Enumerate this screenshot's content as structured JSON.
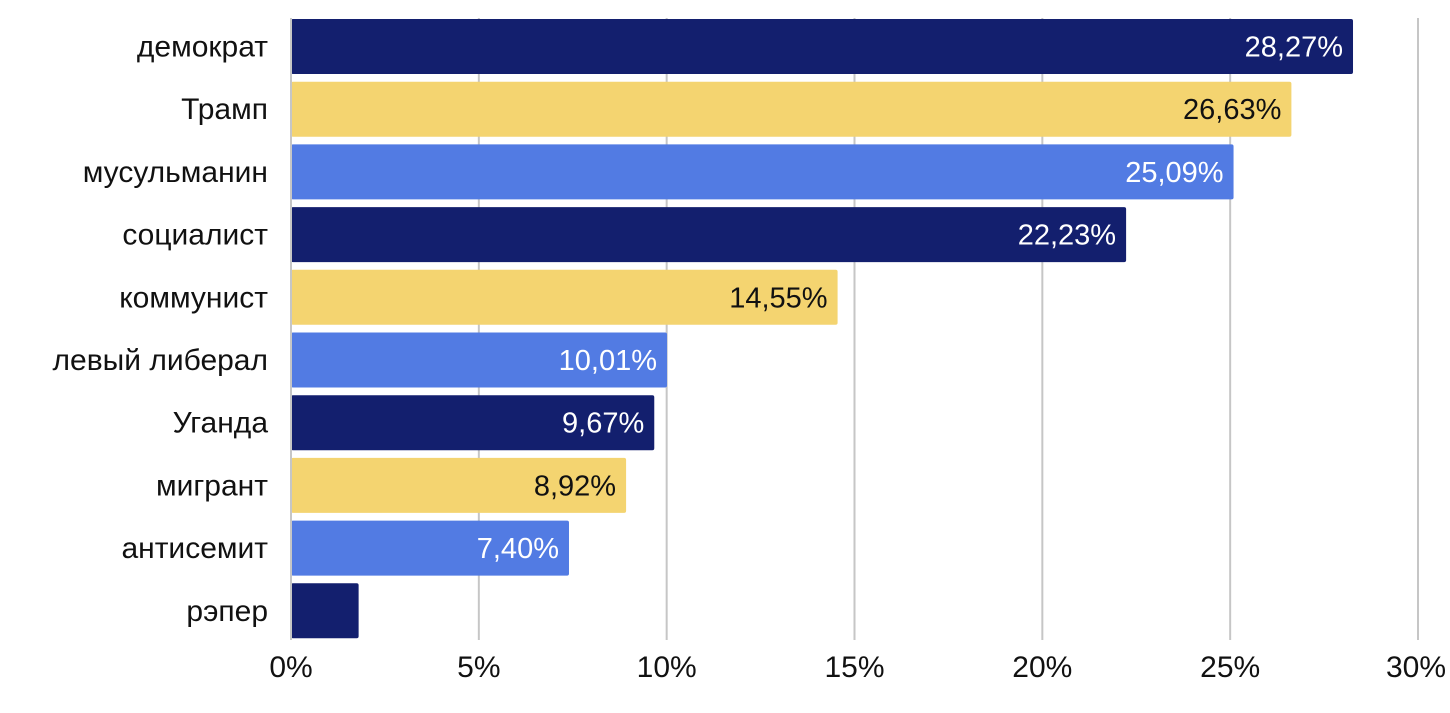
{
  "chart_data": {
    "type": "bar",
    "orientation": "horizontal",
    "title": "",
    "xlabel": "",
    "ylabel": "",
    "xlim": [
      0,
      30
    ],
    "grid": "vertical",
    "categories": [
      "демократ",
      "Трамп",
      "мусульманин",
      "социалист",
      "коммунист",
      "левый либерал",
      "Уганда",
      "мигрант",
      "антисемит",
      "рэпер"
    ],
    "values": [
      28.27,
      26.63,
      25.09,
      22.23,
      14.55,
      10.01,
      9.67,
      8.92,
      7.4,
      1.8
    ],
    "value_labels": [
      "28,27%",
      "26,63%",
      "25,09%",
      "22,23%",
      "14,55%",
      "10,01%",
      "9,67%",
      "8,92%",
      "7,40%",
      ""
    ],
    "bar_colors": [
      "#131f6e",
      "#f4d470",
      "#527be3",
      "#131f6e",
      "#f4d470",
      "#527be3",
      "#131f6e",
      "#f4d470",
      "#527be3",
      "#131f6e"
    ],
    "label_colors": [
      "#ffffff",
      "#111111",
      "#ffffff",
      "#ffffff",
      "#111111",
      "#ffffff",
      "#ffffff",
      "#111111",
      "#ffffff",
      "#ffffff"
    ],
    "x_ticks": [
      0,
      5,
      10,
      15,
      20,
      25,
      30
    ],
    "x_tick_labels": [
      "0%",
      "5%",
      "10%",
      "15%",
      "20%",
      "25%",
      "30%"
    ]
  }
}
